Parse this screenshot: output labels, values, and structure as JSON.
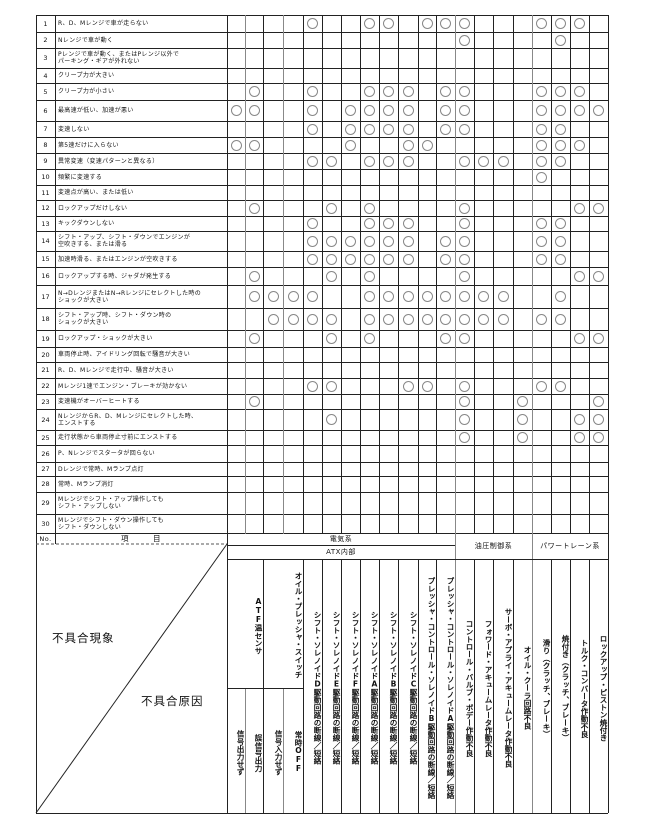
{
  "header": {
    "no_label": "No.",
    "item_label": "項　　　目",
    "symptom_label": "不具合現象",
    "cause_label": "不具合原因",
    "group_electrical": "電気系",
    "group_atx": "ATX内部",
    "group_hydraulic": "油圧制御系",
    "group_powertrain": "パワートレーン系"
  },
  "columns": [
    {
      "group": "ATF温センサ",
      "sub": "信号出力せず"
    },
    {
      "group": "ATF温センサ",
      "sub": "誤信号出力"
    },
    {
      "group": "オイル・プレッシャ・スイッチ",
      "sub": "信号入力せず"
    },
    {
      "group": "オイル・プレッシャ・スイッチ",
      "sub": "常時OFF"
    },
    {
      "label": "シフト・ソレノイドD駆動回路の断線／短絡"
    },
    {
      "label": "シフト・ソレノイドE駆動回路の断線／短絡"
    },
    {
      "label": "シフト・ソレノイドF駆動回路の断線／短絡"
    },
    {
      "label": "シフト・ソレノイドA駆動回路の断線／短絡"
    },
    {
      "label": "シフト・ソレノイドB駆動回路の断線／短絡"
    },
    {
      "label": "シフト・ソレノイドC駆動回路の断線／短絡"
    },
    {
      "label": "プレッシャ・コントロール・ソレノイドB駆動回路の断線／短絡"
    },
    {
      "label": "プレッシャ・コントロール・ソレノイドA駆動回路の断線／短絡"
    },
    {
      "label": "コントロール・バルブ・ボデー作動不良"
    },
    {
      "label": "フォワード・アキュームレータ作動不良"
    },
    {
      "label": "サーボ・アプライ・アキュームレータ作動不良"
    },
    {
      "label": "オイル・クーラ回路不良"
    },
    {
      "label": "滑り（クラッチ、ブレーキ）"
    },
    {
      "label": "焼付き（クラッチ、ブレーキ）"
    },
    {
      "label": "トルク・コンバータ作動不良"
    },
    {
      "label": "ロックアップ・ピストン焼付き"
    }
  ],
  "mark_symbol": "○",
  "rows": [
    {
      "no": "1",
      "text": "R、D、Mレンジで車が走らない",
      "marks": [
        5,
        8,
        9,
        11,
        12,
        13,
        17,
        18,
        19
      ]
    },
    {
      "no": "2",
      "text": "Nレンジで車が動く",
      "marks": [
        13,
        18
      ]
    },
    {
      "no": "3",
      "text": "Pレンジで車が動く、またはPレンジ以外で\nパーキング・ギアが外れない",
      "marks": []
    },
    {
      "no": "4",
      "text": "クリープ力が大きい",
      "marks": []
    },
    {
      "no": "5",
      "text": "クリープ力が小さい",
      "marks": [
        2,
        5,
        8,
        9,
        10,
        12,
        13,
        17,
        18,
        19
      ]
    },
    {
      "no": "6",
      "text": "最高速が低い、加速が悪い",
      "marks": [
        1,
        2,
        5,
        7,
        8,
        9,
        10,
        12,
        13,
        17,
        18,
        19,
        20
      ]
    },
    {
      "no": "7",
      "text": "変速しない",
      "marks": [
        5,
        7,
        8,
        9,
        10,
        12,
        13,
        17,
        18
      ]
    },
    {
      "no": "8",
      "text": "第5速だけに入らない",
      "marks": [
        1,
        2,
        7,
        10,
        11,
        17,
        18,
        19
      ]
    },
    {
      "no": "9",
      "text": "異常変速（変速パターンと異なる）",
      "marks": [
        5,
        6,
        8,
        9,
        10,
        13,
        14,
        15,
        17,
        18
      ]
    },
    {
      "no": "10",
      "text": "頻繁に変速する",
      "marks": [
        17
      ]
    },
    {
      "no": "11",
      "text": "変速点が高い、または低い",
      "marks": []
    },
    {
      "no": "12",
      "text": "ロックアップだけしない",
      "marks": [
        2,
        6,
        8,
        13,
        19,
        20
      ]
    },
    {
      "no": "13",
      "text": "キックダウンしない",
      "marks": [
        5,
        8,
        9,
        10,
        13,
        17,
        18
      ]
    },
    {
      "no": "14",
      "text": "シフト・アップ、シフト・ダウンでエンジンが\n空吹きする、または滑る",
      "marks": [
        5,
        6,
        7,
        8,
        9,
        10,
        12,
        13,
        17,
        18
      ]
    },
    {
      "no": "15",
      "text": "加速時滑る、またはエンジンが空吹きする",
      "marks": [
        5,
        6,
        7,
        8,
        9,
        10,
        12,
        13,
        17,
        18
      ]
    },
    {
      "no": "16",
      "text": "ロックアップする時、ジャダが発生する",
      "marks": [
        2,
        6,
        8,
        13,
        19,
        20
      ]
    },
    {
      "no": "17",
      "text": "N→DレンジまたはN→Rレンジにセレクトした時の\nショックが大きい",
      "marks": [
        2,
        3,
        4,
        5,
        8,
        9,
        10,
        11,
        12,
        13,
        14,
        15,
        18
      ]
    },
    {
      "no": "18",
      "text": "シフト・アップ時、シフト・ダウン時の\nショックが大きい",
      "marks": [
        3,
        4,
        5,
        6,
        8,
        9,
        10,
        11,
        12,
        13,
        14,
        15,
        17,
        18
      ]
    },
    {
      "no": "19",
      "text": "ロックアップ・ショックが大きい",
      "marks": [
        2,
        6,
        8,
        12,
        13,
        19,
        20
      ]
    },
    {
      "no": "20",
      "text": "車両停止時、アイドリング回転で騒音が大きい",
      "marks": []
    },
    {
      "no": "21",
      "text": "R、D、Mレンジで走行中、騒音が大きい",
      "marks": []
    },
    {
      "no": "22",
      "text": "Mレンジ1速でエンジン・ブレーキが効かない",
      "marks": [
        5,
        6,
        10,
        11,
        13,
        17,
        18
      ]
    },
    {
      "no": "23",
      "text": "変速機がオーバーヒートする",
      "marks": [
        2,
        13,
        16,
        20
      ]
    },
    {
      "no": "24",
      "text": "NレンジからR、D、Mレンジにセレクトした時、\nエンストする",
      "marks": [
        6,
        13,
        16,
        19,
        20
      ]
    },
    {
      "no": "25",
      "text": "走行状態から車両停止寸前にエンストする",
      "marks": [
        13,
        16,
        19,
        20
      ]
    },
    {
      "no": "26",
      "text": "P、Nレンジでスタータが回らない",
      "marks": []
    },
    {
      "no": "27",
      "text": "Dレンジで常時、Mランプ点灯",
      "marks": []
    },
    {
      "no": "28",
      "text": "常時、Mランプ消灯",
      "marks": []
    },
    {
      "no": "29",
      "text": "Mレンジでシフト・アップ操作しても\nシフト・アップしない",
      "marks": []
    },
    {
      "no": "30",
      "text": "Mレンジでシフト・ダウン操作しても\nシフト・ダウンしない",
      "marks": []
    }
  ]
}
